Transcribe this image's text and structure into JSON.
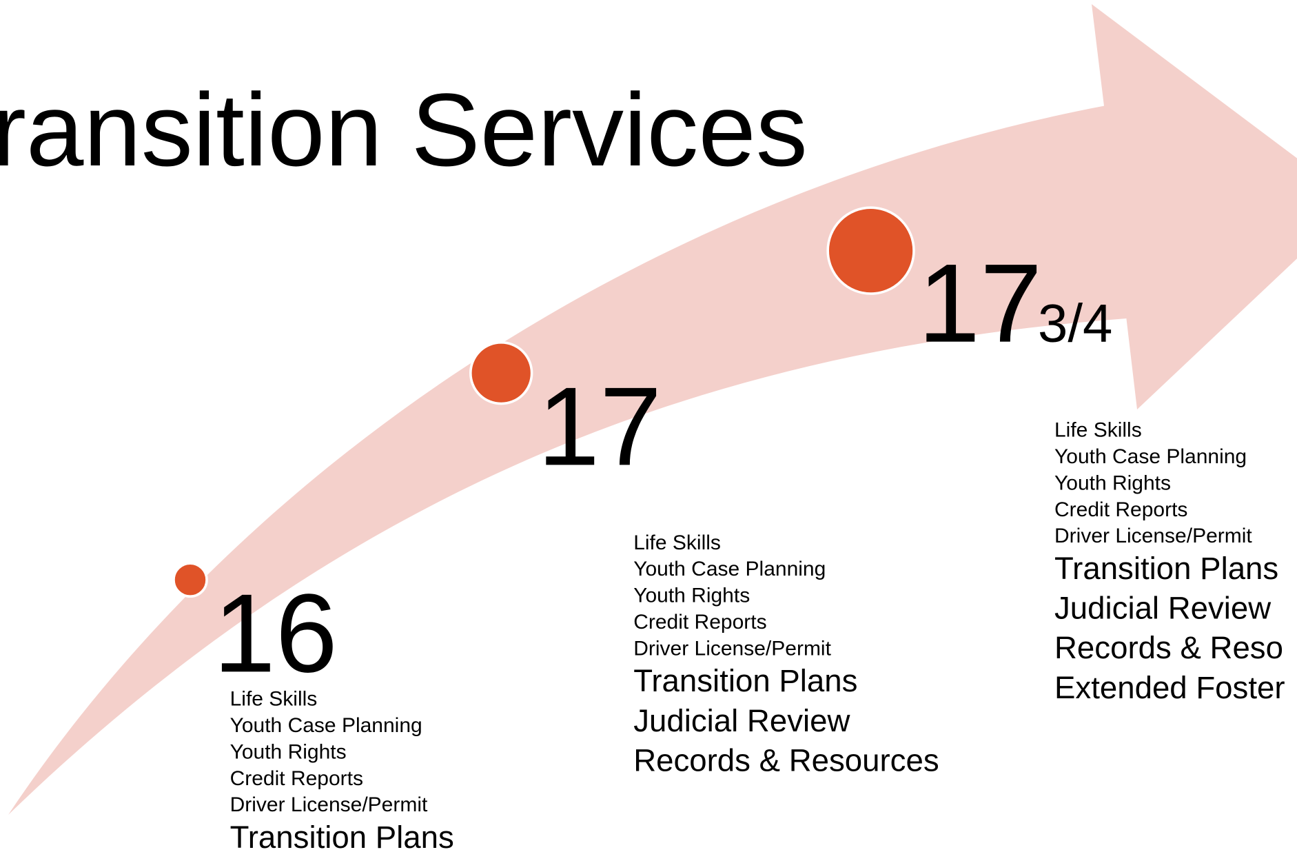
{
  "title": "ransition Services",
  "milestones": [
    {
      "age": "16",
      "small": [
        "Life Skills",
        "Youth Case Planning",
        "Youth Rights",
        "Credit Reports",
        "Driver License/Permit"
      ],
      "large": [
        "Transition Plans"
      ]
    },
    {
      "age": "17",
      "small": [
        "Life Skills",
        "Youth Case Planning",
        "Youth Rights",
        "Credit Reports",
        "Driver License/Permit"
      ],
      "large": [
        "Transition Plans",
        "Judicial Review",
        "Records & Resources"
      ]
    },
    {
      "age": "17",
      "fraction": "3/4",
      "small": [
        "Life Skills",
        "Youth Case Planning",
        "Youth Rights",
        "Credit Reports",
        "Driver License/Permit"
      ],
      "large": [
        "Transition Plans",
        "Judicial Review",
        "Records & Reso",
        "Extended Foster"
      ]
    }
  ]
}
